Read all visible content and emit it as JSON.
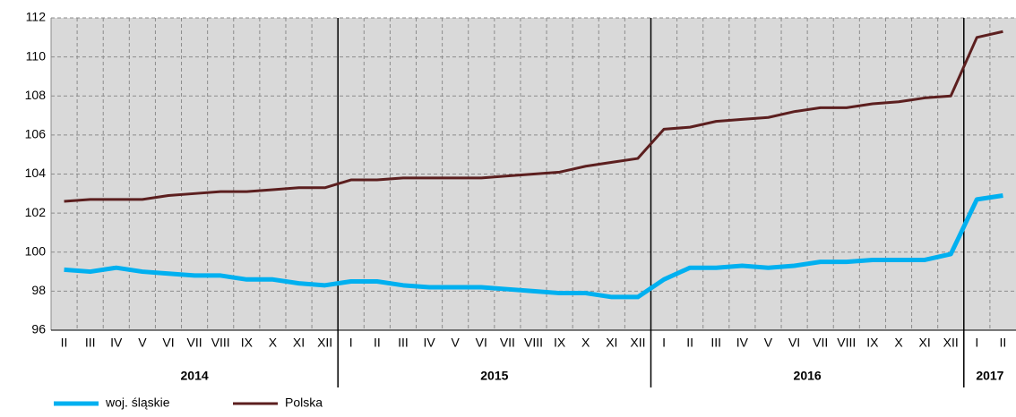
{
  "chart_data": {
    "type": "line",
    "year_groups": [
      {
        "label": "2014",
        "months": [
          "II",
          "III",
          "IV",
          "V",
          "VI",
          "VII",
          "VIII",
          "IX",
          "X",
          "XI",
          "XII"
        ]
      },
      {
        "label": "2015",
        "months": [
          "I",
          "II",
          "III",
          "IV",
          "V",
          "VI",
          "VII",
          "VIII",
          "IX",
          "X",
          "XI",
          "XII"
        ]
      },
      {
        "label": "2016",
        "months": [
          "I",
          "II",
          "III",
          "IV",
          "V",
          "VI",
          "VII",
          "VIII",
          "IX",
          "X",
          "XI",
          "XII"
        ]
      },
      {
        "label": "2017",
        "months": [
          "I",
          "II"
        ]
      }
    ],
    "series": [
      {
        "name": "woj. śląskie",
        "color": "#00b0f0",
        "values": [
          99.1,
          99.0,
          99.2,
          99.0,
          98.9,
          98.8,
          98.8,
          98.6,
          98.6,
          98.4,
          98.3,
          98.5,
          98.5,
          98.3,
          98.2,
          98.2,
          98.2,
          98.1,
          98.0,
          97.9,
          97.9,
          97.7,
          97.7,
          98.6,
          99.2,
          99.2,
          99.3,
          99.2,
          99.3,
          99.5,
          99.5,
          99.6,
          99.6,
          99.6,
          99.9,
          102.7,
          102.9
        ]
      },
      {
        "name": "Polska",
        "color": "#5c1f1f",
        "values": [
          102.6,
          102.7,
          102.7,
          102.7,
          102.9,
          103.0,
          103.1,
          103.1,
          103.2,
          103.3,
          103.3,
          103.7,
          103.7,
          103.8,
          103.8,
          103.8,
          103.8,
          103.9,
          104.0,
          104.1,
          104.4,
          104.6,
          104.8,
          106.3,
          106.4,
          106.7,
          106.8,
          106.9,
          107.2,
          107.4,
          107.4,
          107.6,
          107.7,
          107.9,
          108.0,
          111.0,
          111.3
        ]
      }
    ],
    "ylim": [
      96,
      112
    ],
    "yticks": [
      96,
      98,
      100,
      102,
      104,
      106,
      108,
      110,
      112
    ],
    "grid": true
  }
}
